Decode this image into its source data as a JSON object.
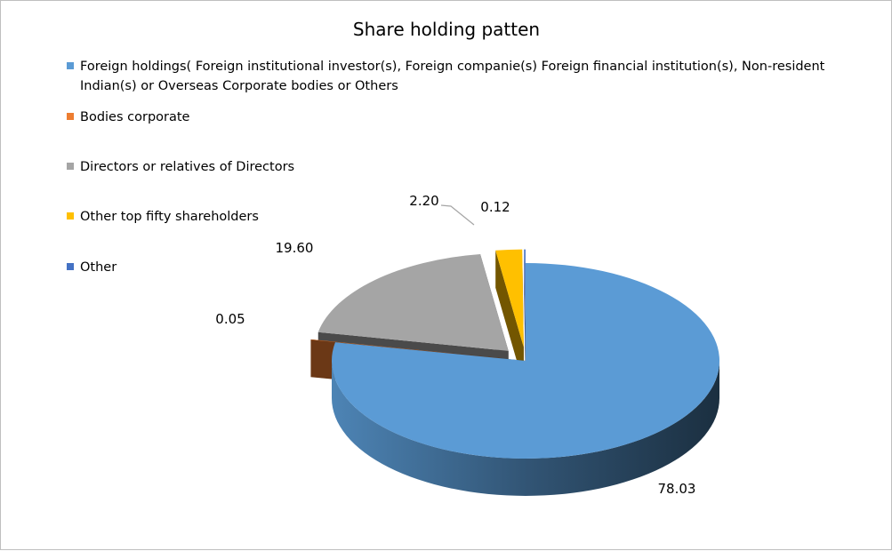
{
  "chart_data": {
    "type": "pie",
    "title": "Share holding patten",
    "three_d": true,
    "legend_position": "left",
    "categories": [
      "Foreign holdings( Foreign institutional investor(s), Foreign companie(s) Foreign financial institution(s),  Non-resident Indian(s) or Overseas Corporate bodies or Others",
      "Bodies corporate",
      "Directors or relatives of Directors",
      "Other top fifty shareholders",
      "Other"
    ],
    "values": [
      78.03,
      0.05,
      19.6,
      2.2,
      0.12
    ],
    "data_labels": [
      "78.03",
      "0.05",
      "19.60",
      "2.20",
      "0.12"
    ],
    "colors": [
      "#5B9BD5",
      "#ED7D31",
      "#A5A5A5",
      "#FFC000",
      "#4472C4"
    ]
  }
}
